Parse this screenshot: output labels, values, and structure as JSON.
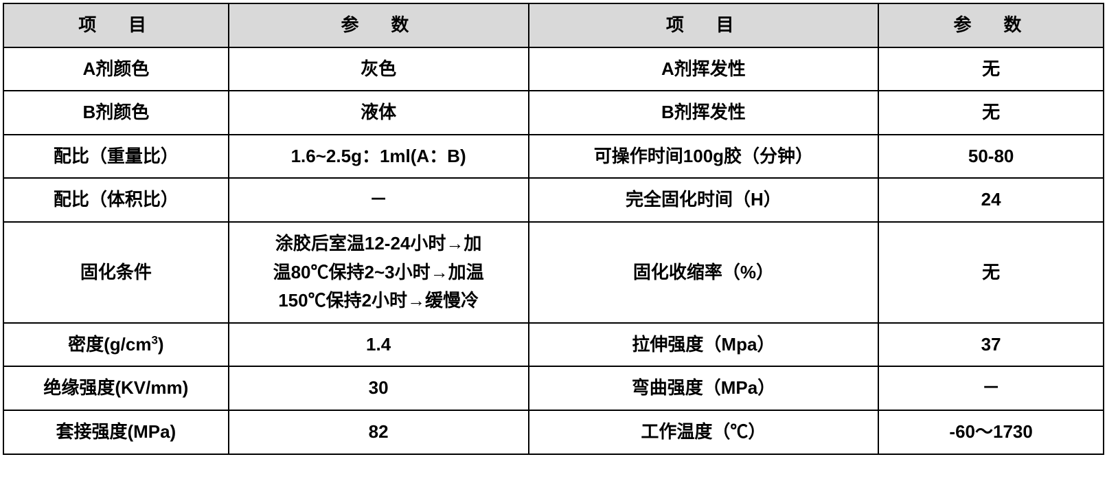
{
  "table": {
    "headers": {
      "col1": "项　目",
      "col2": "参　数",
      "col3": "项　目",
      "col4": "参　数"
    },
    "rows": [
      {
        "label1": "A剂颜色",
        "param1": "灰色",
        "label2": "A剂挥发性",
        "param2": "无"
      },
      {
        "label1": "B剂颜色",
        "param1": "液体",
        "label2": "B剂挥发性",
        "param2": "无"
      },
      {
        "label1": "配比（重量比）",
        "param1": "1.6~2.5g：1ml(A：B)",
        "label2": "可操作时间100g胶（分钟）",
        "param2": "50-80"
      },
      {
        "label1": "配比（体积比）",
        "param1": "－",
        "label2": "完全固化时间（H）",
        "param2": "24"
      },
      {
        "label1": "固化条件",
        "param1_line1": "涂胶后室温12-24小时→加",
        "param1_line2": "温80℃保持2~3小时→加温",
        "param1_line3": "150℃保持2小时→缓慢冷",
        "label2": "固化收缩率（%）",
        "param2": "无"
      },
      {
        "label1_pre": "密度(g/cm",
        "label1_sup": "3",
        "label1_post": ")",
        "param1": "1.4",
        "label2": "拉伸强度（Mpa）",
        "param2": "37"
      },
      {
        "label1": "绝缘强度(KV/mm)",
        "param1": "30",
        "label2": "弯曲强度（MPa）",
        "param2": "－"
      },
      {
        "label1": "套接强度(MPa)",
        "param1": "82",
        "label2": "工作温度（℃）",
        "param2": "-60～1730"
      }
    ],
    "styling": {
      "border_color": "#000000",
      "border_width": 2,
      "header_bg_color": "#d9d9d9",
      "body_bg_color": "#ffffff",
      "font_family": "Microsoft YaHei",
      "font_size": 26,
      "font_weight": "bold",
      "text_align": "center",
      "col_widths_pct": [
        18,
        24,
        28,
        18
      ]
    }
  }
}
